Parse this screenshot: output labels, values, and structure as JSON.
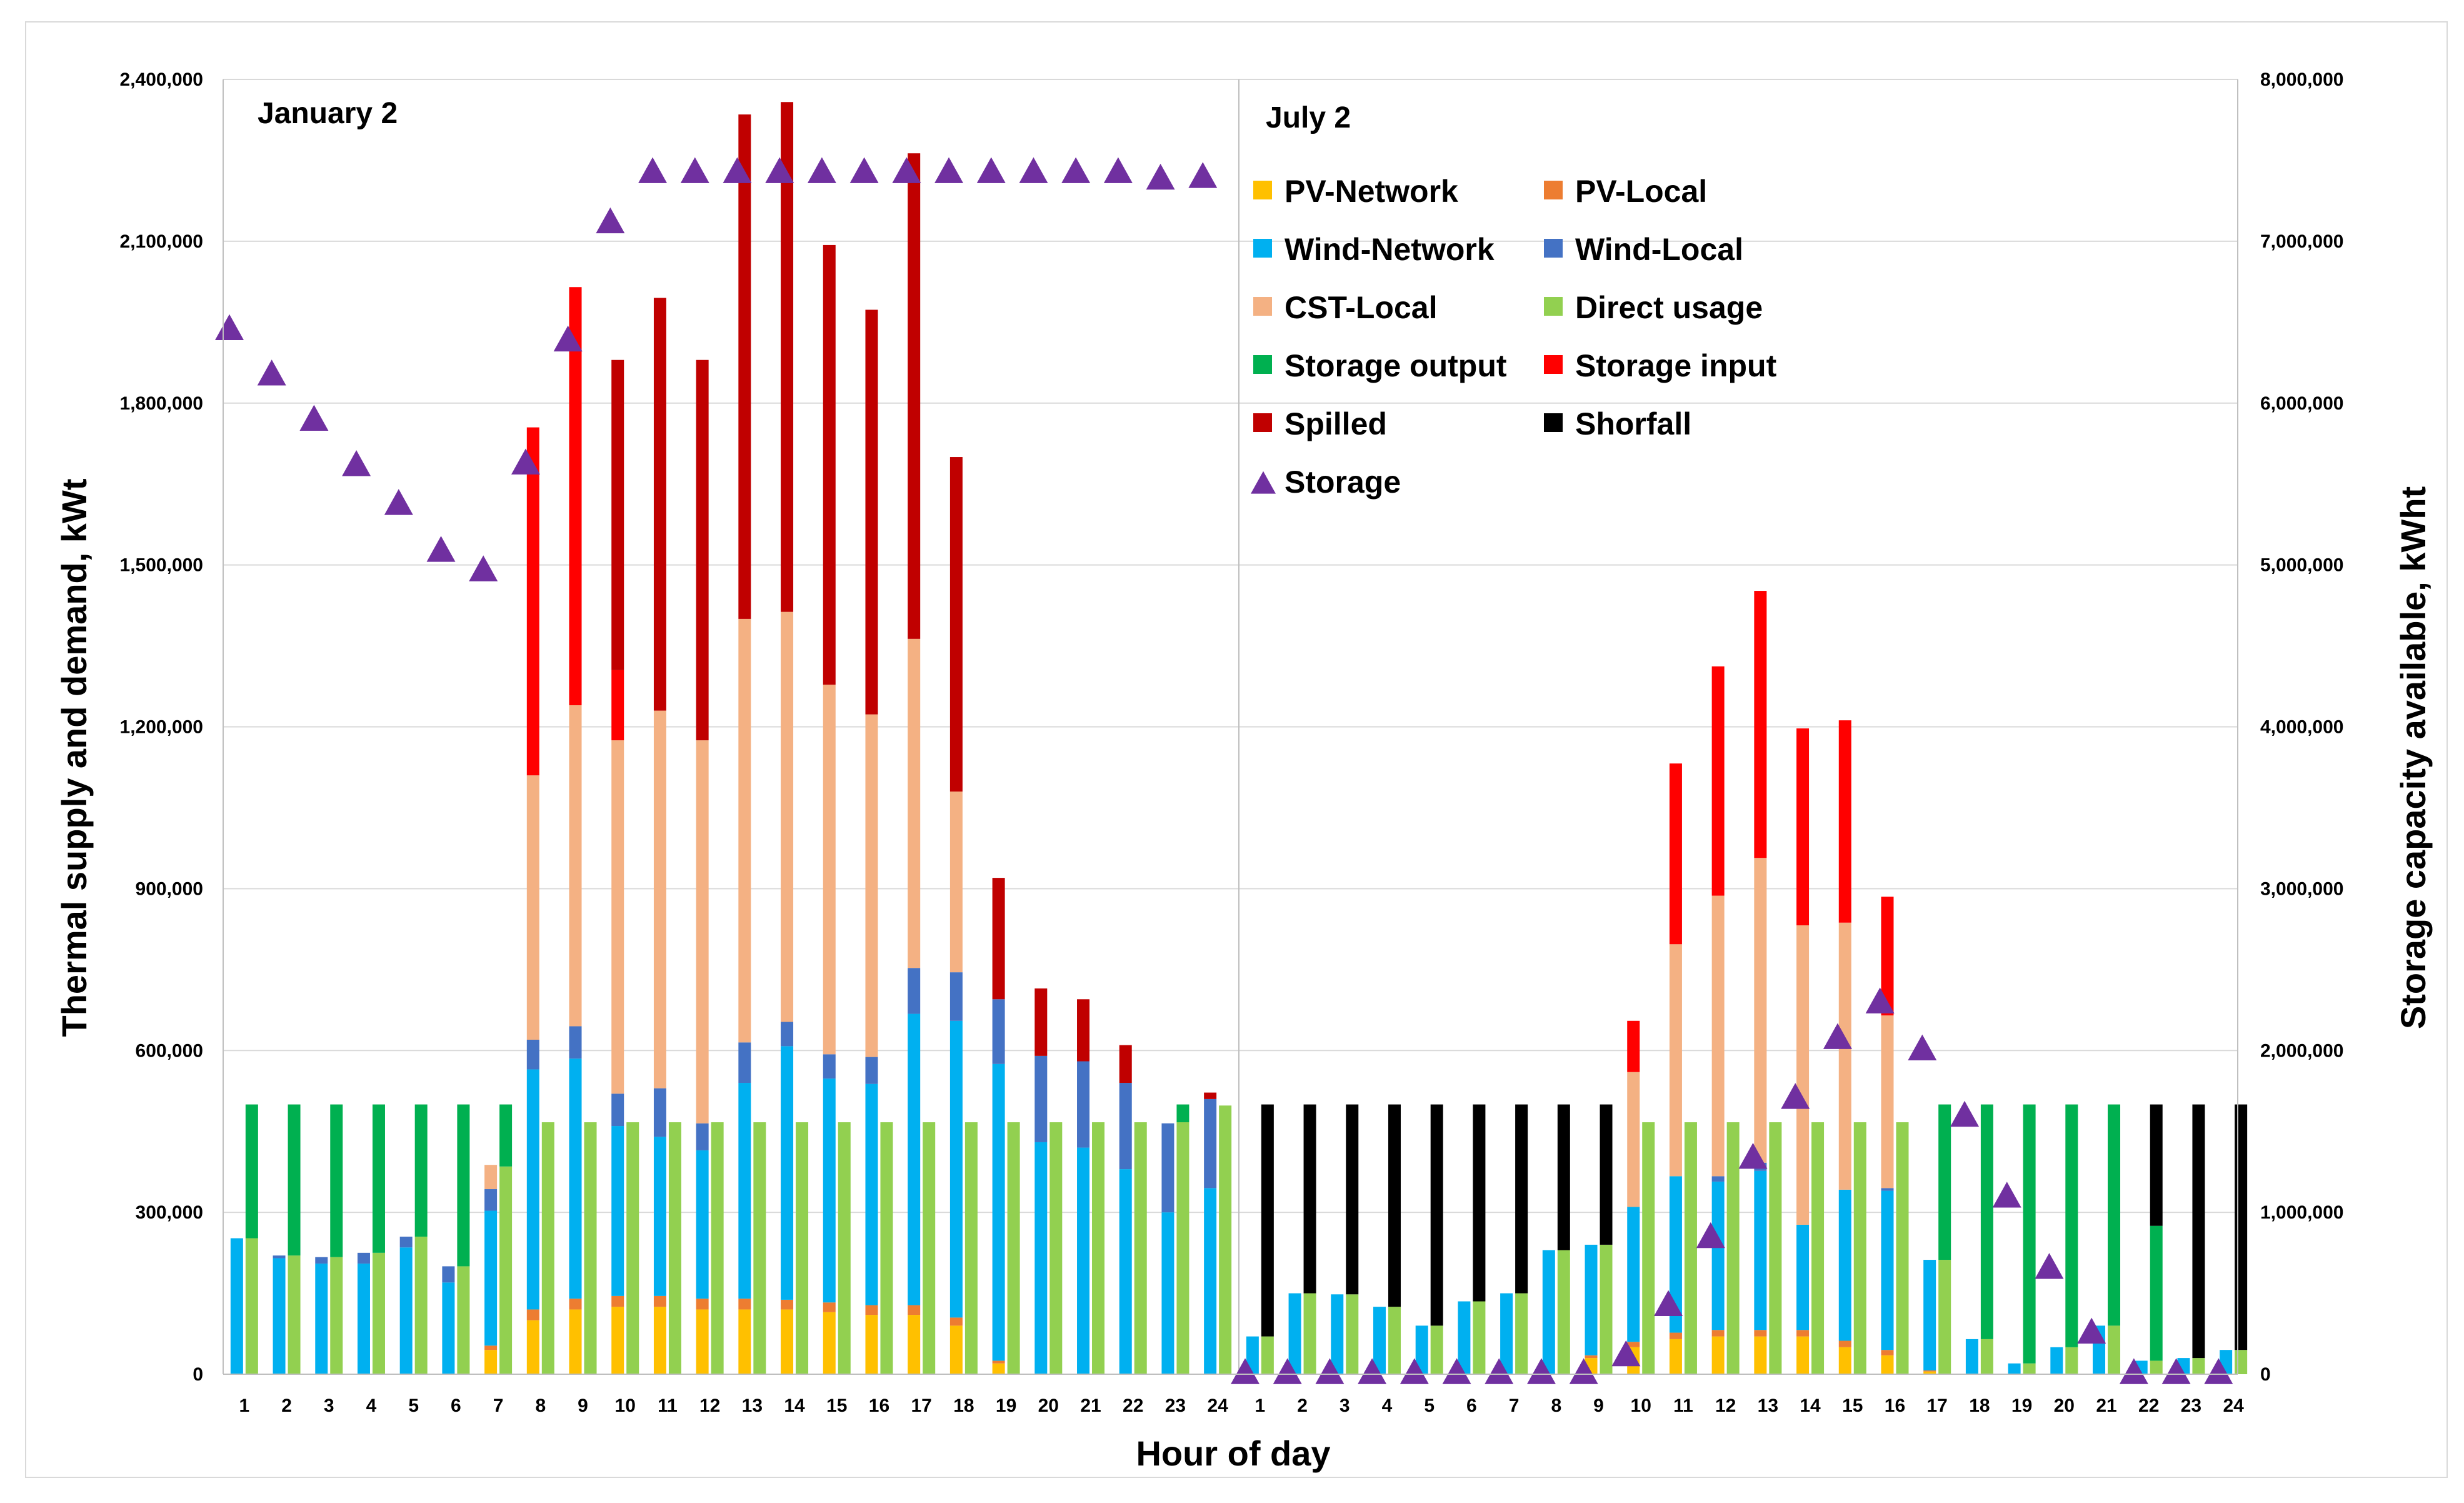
{
  "chart_data": {
    "type": "bar",
    "subtype": "stacked-bar-with-marker-series",
    "xlabel": "Hour of day",
    "ylabel": "Thermal supply and demand, kWt",
    "y2label": "Storage capacity available, kWht",
    "ylim": [
      0,
      2400000
    ],
    "y2lim": [
      0,
      8000000
    ],
    "y_ticks": [
      "0",
      "300,000",
      "600,000",
      "900,000",
      "1,200,000",
      "1,500,000",
      "1,800,000",
      "2,100,000",
      "2,400,000"
    ],
    "y2_ticks": [
      "0",
      "1,000,000",
      "2,000,000",
      "3,000,000",
      "4,000,000",
      "5,000,000",
      "6,000,000",
      "7,000,000",
      "8,000,000"
    ],
    "grid": true,
    "legend_location": "upper-right panel",
    "categories": [
      "1",
      "2",
      "3",
      "4",
      "5",
      "6",
      "7",
      "8",
      "9",
      "10",
      "11",
      "12",
      "13",
      "14",
      "15",
      "16",
      "17",
      "18",
      "19",
      "20",
      "21",
      "22",
      "23",
      "24"
    ],
    "panels": [
      {
        "label": "January 2",
        "series": [
          {
            "name": "PV-Network",
            "values": [
              0,
              0,
              0,
              0,
              0,
              0,
              45000,
              100000,
              120000,
              125000,
              125000,
              120000,
              120000,
              120000,
              115000,
              110000,
              110000,
              90000,
              20000,
              0,
              0,
              0,
              0,
              0
            ]
          },
          {
            "name": "PV-Local",
            "values": [
              0,
              0,
              0,
              0,
              0,
              0,
              8000,
              20000,
              20000,
              20000,
              20000,
              20000,
              20000,
              18000,
              18000,
              18000,
              18000,
              15000,
              5000,
              0,
              0,
              0,
              0,
              0
            ]
          },
          {
            "name": "Wind-Network",
            "values": [
              252000,
              215000,
              205000,
              205000,
              235000,
              170000,
              250000,
              445000,
              445000,
              315000,
              295000,
              275000,
              400000,
              470000,
              415000,
              410000,
              540000,
              550000,
              550000,
              430000,
              420000,
              380000,
              300000,
              345000
            ]
          },
          {
            "name": "Wind-Local",
            "values": [
              0,
              5000,
              12000,
              20000,
              20000,
              30000,
              40000,
              55000,
              60000,
              60000,
              90000,
              50000,
              75000,
              45000,
              45000,
              50000,
              85000,
              90000,
              120000,
              160000,
              160000,
              160000,
              165000,
              165000
            ]
          },
          {
            "name": "CST-Local",
            "values": [
              0,
              0,
              0,
              0,
              0,
              0,
              45000,
              490000,
              595000,
              655000,
              700000,
              710000,
              785000,
              760000,
              685000,
              635000,
              610000,
              335000,
              0,
              0,
              0,
              0,
              0,
              0
            ]
          },
          {
            "name": "Direct usage",
            "values": [
              252000,
              220000,
              217000,
              225000,
              255000,
              200000,
              385000,
              467000,
              467000,
              467000,
              467000,
              467000,
              467000,
              467000,
              467000,
              467000,
              467000,
              467000,
              467000,
              467000,
              467000,
              467000,
              467000,
              498000
            ]
          },
          {
            "name": "Storage output",
            "values": [
              248000,
              280000,
              283000,
              275000,
              245000,
              300000,
              115000,
              0,
              0,
              0,
              0,
              0,
              0,
              0,
              0,
              0,
              0,
              0,
              0,
              0,
              0,
              0,
              33000,
              0
            ]
          },
          {
            "name": "Storage input",
            "values": [
              0,
              0,
              0,
              0,
              0,
              0,
              0,
              645000,
              775000,
              130000,
              0,
              0,
              0,
              0,
              0,
              0,
              0,
              0,
              0,
              0,
              0,
              0,
              0,
              0
            ]
          },
          {
            "name": "Spilled",
            "values": [
              0,
              0,
              0,
              0,
              0,
              0,
              0,
              0,
              0,
              575000,
              765000,
              705000,
              935000,
              945000,
              815000,
              750000,
              900000,
              620000,
              225000,
              125000,
              115000,
              70000,
              0,
              12000
            ]
          },
          {
            "name": "Shorfall",
            "values": [
              0,
              0,
              0,
              0,
              0,
              0,
              0,
              0,
              0,
              0,
              0,
              0,
              0,
              0,
              0,
              0,
              0,
              0,
              0,
              0,
              0,
              0,
              0,
              0
            ]
          }
        ],
        "storage": [
          6450000,
          6170000,
          5890000,
          5610000,
          5370000,
          5080000,
          4960000,
          5620000,
          6380000,
          7110000,
          7420000,
          7420000,
          7420000,
          7420000,
          7420000,
          7420000,
          7420000,
          7420000,
          7420000,
          7420000,
          7420000,
          7420000,
          7380000,
          7390000
        ]
      },
      {
        "label": "July 2",
        "series": [
          {
            "name": "PV-Network",
            "values": [
              0,
              0,
              0,
              0,
              0,
              0,
              0,
              0,
              30000,
              50000,
              65000,
              70000,
              70000,
              70000,
              50000,
              35000,
              5000,
              0,
              0,
              0,
              0,
              0,
              0,
              0
            ]
          },
          {
            "name": "PV-Local",
            "values": [
              0,
              0,
              0,
              0,
              0,
              0,
              0,
              0,
              5000,
              10000,
              12000,
              12000,
              12000,
              12000,
              12000,
              10000,
              2000,
              0,
              0,
              0,
              0,
              0,
              0,
              0
            ]
          },
          {
            "name": "Wind-Network",
            "values": [
              70000,
              150000,
              148000,
              125000,
              90000,
              135000,
              150000,
              230000,
              205000,
              250000,
              290000,
              275000,
              295000,
              195000,
              280000,
              295000,
              205000,
              65000,
              20000,
              50000,
              90000,
              25000,
              30000,
              45000
            ]
          },
          {
            "name": "Wind-Local",
            "values": [
              0,
              0,
              0,
              0,
              0,
              0,
              0,
              0,
              0,
              0,
              0,
              10000,
              15000,
              0,
              0,
              5000,
              0,
              0,
              0,
              0,
              0,
              0,
              0,
              0
            ]
          },
          {
            "name": "CST-Local",
            "values": [
              0,
              0,
              0,
              0,
              0,
              0,
              0,
              0,
              0,
              250000,
              430000,
              520000,
              565000,
              555000,
              495000,
              320000,
              0,
              0,
              0,
              0,
              0,
              0,
              0,
              0
            ]
          },
          {
            "name": "Direct usage",
            "values": [
              70000,
              150000,
              148000,
              125000,
              90000,
              135000,
              150000,
              230000,
              240000,
              467000,
              467000,
              467000,
              467000,
              467000,
              467000,
              467000,
              212000,
              65000,
              20000,
              50000,
              90000,
              25000,
              30000,
              45000
            ]
          },
          {
            "name": "Storage output",
            "values": [
              0,
              0,
              0,
              0,
              0,
              0,
              0,
              0,
              0,
              0,
              0,
              0,
              0,
              0,
              0,
              0,
              288000,
              435000,
              480000,
              450000,
              410000,
              250000,
              0,
              0
            ]
          },
          {
            "name": "Storage input",
            "values": [
              0,
              0,
              0,
              0,
              0,
              0,
              0,
              0,
              0,
              95000,
              335000,
              425000,
              495000,
              365000,
              375000,
              220000,
              0,
              0,
              0,
              0,
              0,
              0,
              0,
              0
            ]
          },
          {
            "name": "Spilled",
            "values": [
              0,
              0,
              0,
              0,
              0,
              0,
              0,
              0,
              0,
              0,
              0,
              0,
              0,
              0,
              0,
              0,
              0,
              0,
              0,
              0,
              0,
              0,
              0,
              0
            ]
          },
          {
            "name": "Shorfall",
            "values": [
              430000,
              350000,
              352000,
              375000,
              410000,
              365000,
              350000,
              270000,
              260000,
              0,
              0,
              0,
              0,
              0,
              0,
              0,
              0,
              0,
              0,
              0,
              0,
              225000,
              470000,
              455000
            ]
          }
        ],
        "storage": [
          0,
          0,
          0,
          0,
          0,
          0,
          0,
          0,
          0,
          110000,
          420000,
          840000,
          1330000,
          1700000,
          2070000,
          2290000,
          2000000,
          1590000,
          1090000,
          650000,
          250000,
          0,
          0,
          0
        ]
      }
    ],
    "legend": [
      {
        "name": "PV-Network",
        "color": "#FFC000",
        "marker": "square"
      },
      {
        "name": "PV-Local",
        "color": "#ED7D31",
        "marker": "square"
      },
      {
        "name": "Wind-Network",
        "color": "#00B0F0",
        "marker": "square"
      },
      {
        "name": "Wind-Local",
        "color": "#4472C4",
        "marker": "square"
      },
      {
        "name": "CST-Local",
        "color": "#F4B183",
        "marker": "square"
      },
      {
        "name": "Direct usage",
        "color": "#92D050",
        "marker": "square"
      },
      {
        "name": "Storage output",
        "color": "#00B050",
        "marker": "square"
      },
      {
        "name": "Storage input",
        "color": "#FF0000",
        "marker": "square"
      },
      {
        "name": "Spilled",
        "color": "#C00000",
        "marker": "square"
      },
      {
        "name": "Shorfall",
        "color": "#000000",
        "marker": "square"
      },
      {
        "name": "Storage",
        "color": "#7030A0",
        "marker": "triangle"
      }
    ]
  }
}
